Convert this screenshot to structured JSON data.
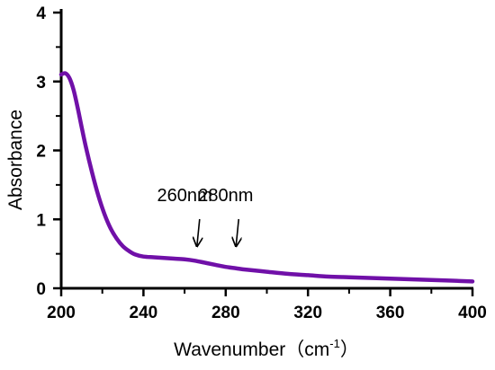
{
  "chart_data": {
    "type": "line",
    "title": "",
    "xlabel": "Wavenumber（cm",
    "xlabel_sup": "-1",
    "xlabel_close": "）",
    "ylabel": "Absorbance",
    "xlim": [
      200,
      400
    ],
    "ylim": [
      0,
      4
    ],
    "xticks": [
      200,
      240,
      280,
      320,
      360,
      400
    ],
    "yticks": [
      0,
      1,
      2,
      3,
      4
    ],
    "grid": false,
    "legend": "none",
    "series": [
      {
        "color": "#7010a8",
        "x": [
          200,
          202,
          204,
          206,
          208,
          210,
          212,
          215,
          218,
          221,
          224,
          227,
          230,
          233,
          236,
          240,
          245,
          250,
          255,
          260,
          265,
          270,
          275,
          280,
          285,
          290,
          300,
          310,
          320,
          330,
          340,
          350,
          360,
          370,
          380,
          390,
          400
        ],
        "y": [
          3.1,
          3.12,
          3.05,
          2.88,
          2.62,
          2.33,
          2.05,
          1.68,
          1.35,
          1.08,
          0.87,
          0.72,
          0.61,
          0.54,
          0.49,
          0.46,
          0.45,
          0.44,
          0.43,
          0.42,
          0.4,
          0.37,
          0.34,
          0.31,
          0.29,
          0.27,
          0.24,
          0.21,
          0.19,
          0.17,
          0.16,
          0.15,
          0.14,
          0.13,
          0.12,
          0.11,
          0.1
        ]
      }
    ],
    "annotations": [
      {
        "text": "260nm",
        "x": 260,
        "arrow_to": [
          266,
          0.65
        ]
      },
      {
        "text": "280nm",
        "x": 280,
        "arrow_to": [
          285,
          0.65
        ]
      }
    ]
  }
}
